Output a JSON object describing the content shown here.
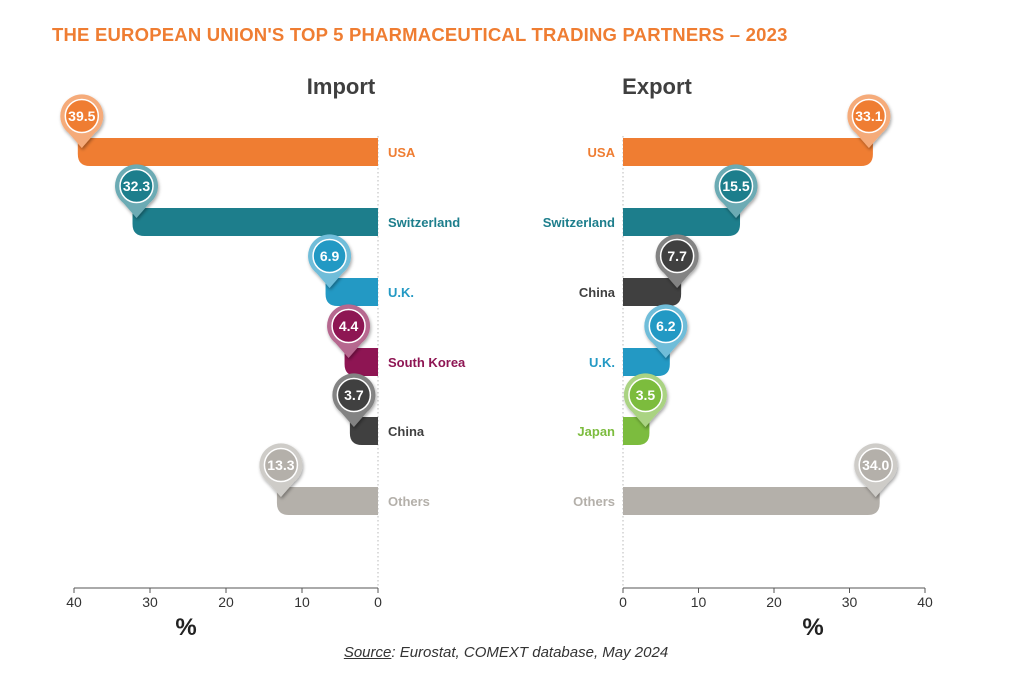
{
  "title": "THE EUROPEAN UNION'S TOP 5 PHARMACEUTICAL TRADING PARTNERS – 2023",
  "source": {
    "label": "Source",
    "text": ": Eurostat, COMEXT database, May 2024"
  },
  "chart_data": [
    {
      "type": "bar",
      "orientation": "horizontal",
      "title": "Import",
      "xlabel": "%",
      "xlim": [
        0,
        40
      ],
      "x_reversed": true,
      "ticks": [
        "40",
        "30",
        "20",
        "10",
        "0"
      ],
      "categories": [
        "USA",
        "Switzerland",
        "U.K.",
        "South Korea",
        "China",
        "Others"
      ],
      "values": [
        39.5,
        32.3,
        6.9,
        4.4,
        3.7,
        13.3
      ],
      "labels": [
        "39.5",
        "32.3",
        "6.9",
        "4.4",
        "3.7",
        "13.3"
      ],
      "colors": [
        "#ef7d32",
        "#1d7e8c",
        "#2399c4",
        "#8e1553",
        "#404040",
        "#b4b0aa"
      ]
    },
    {
      "type": "bar",
      "orientation": "horizontal",
      "title": "Export",
      "xlabel": "%",
      "xlim": [
        0,
        40
      ],
      "ticks": [
        "0",
        "10",
        "20",
        "30",
        "40"
      ],
      "categories": [
        "USA",
        "Switzerland",
        "China",
        "U.K.",
        "Japan",
        "Others"
      ],
      "values": [
        33.1,
        15.5,
        7.7,
        6.2,
        3.5,
        34.0
      ],
      "labels": [
        "33.1",
        "15.5",
        "7.7",
        "6.2",
        "3.5",
        "34.0"
      ],
      "colors": [
        "#ef7d32",
        "#1d7e8c",
        "#404040",
        "#2399c4",
        "#7cbc3e",
        "#b4b0aa"
      ]
    }
  ]
}
